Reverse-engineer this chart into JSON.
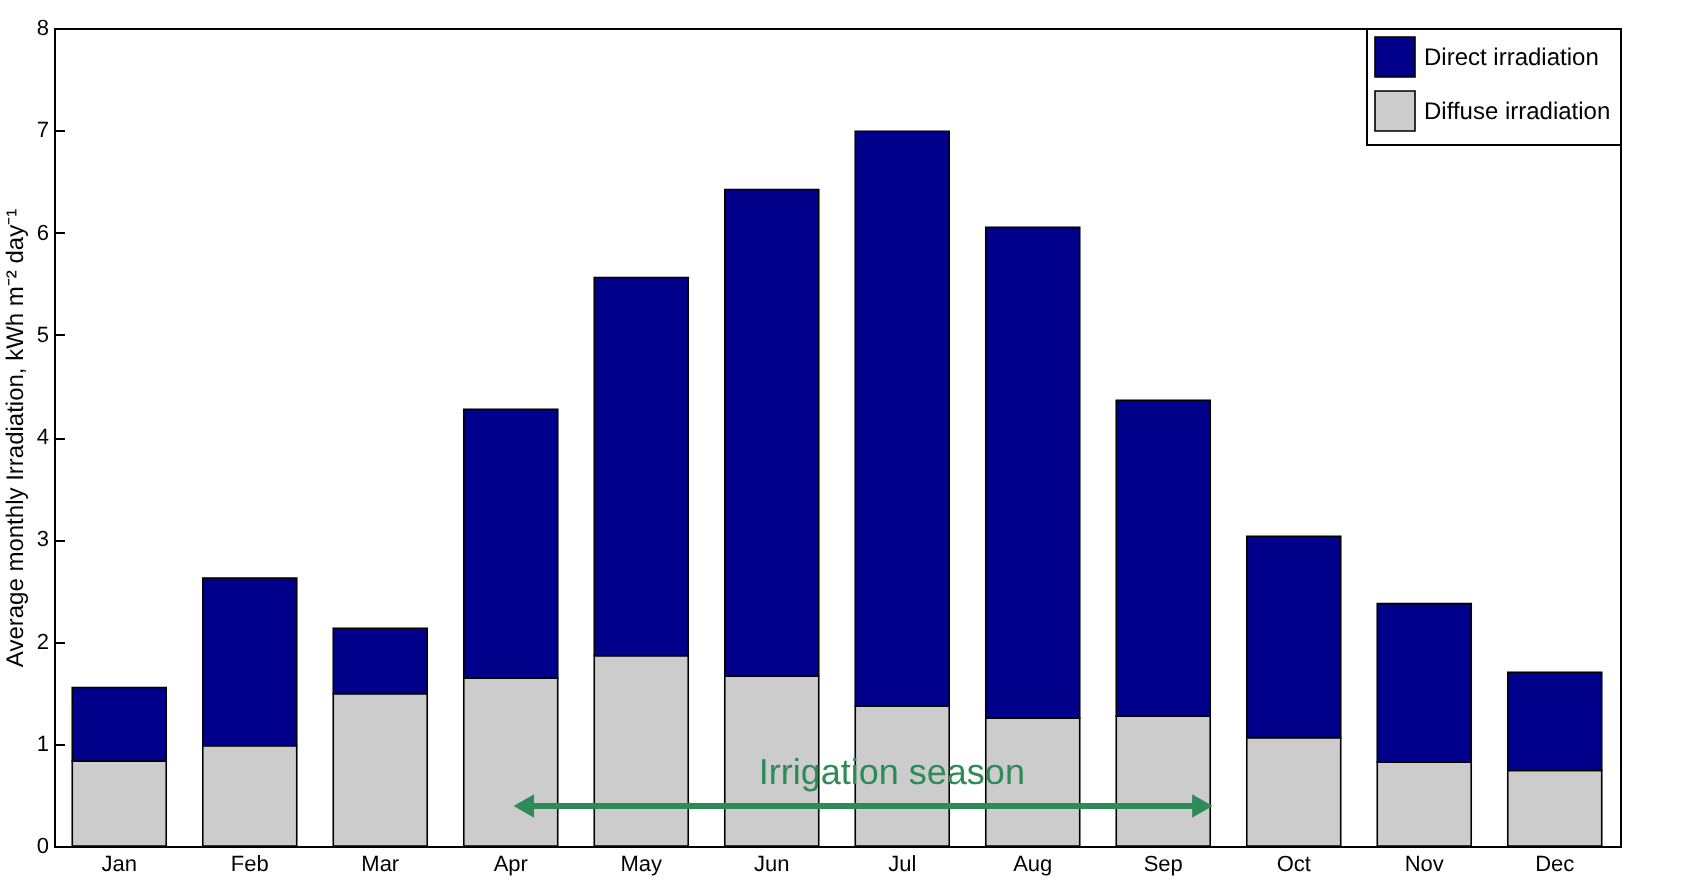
{
  "chart_data": {
    "type": "bar",
    "stacked": true,
    "ylabel": "Average monthly Irradiation, kWh m⁻² day⁻¹",
    "categories": [
      "Jan",
      "Feb",
      "Mar",
      "Apr",
      "May",
      "Jun",
      "Jul",
      "Aug",
      "Sep",
      "Oct",
      "Nov",
      "Dec"
    ],
    "series": [
      {
        "name": "Diffuse irradiation",
        "color": "#cccccc",
        "values": [
          0.83,
          0.98,
          1.49,
          1.64,
          1.86,
          1.66,
          1.37,
          1.25,
          1.27,
          1.06,
          0.82,
          0.74
        ]
      },
      {
        "name": "Direct irradiation",
        "color": "#00008b",
        "values": [
          0.72,
          1.64,
          0.64,
          2.63,
          3.7,
          4.76,
          5.62,
          4.8,
          3.09,
          1.97,
          1.55,
          0.96
        ]
      }
    ],
    "ylim": [
      0,
      8
    ],
    "yticks": [
      0,
      1,
      2,
      3,
      4,
      5,
      6,
      7,
      8
    ],
    "grid": false,
    "legend": "top right",
    "annotations": [
      "Irrigation season"
    ]
  }
}
